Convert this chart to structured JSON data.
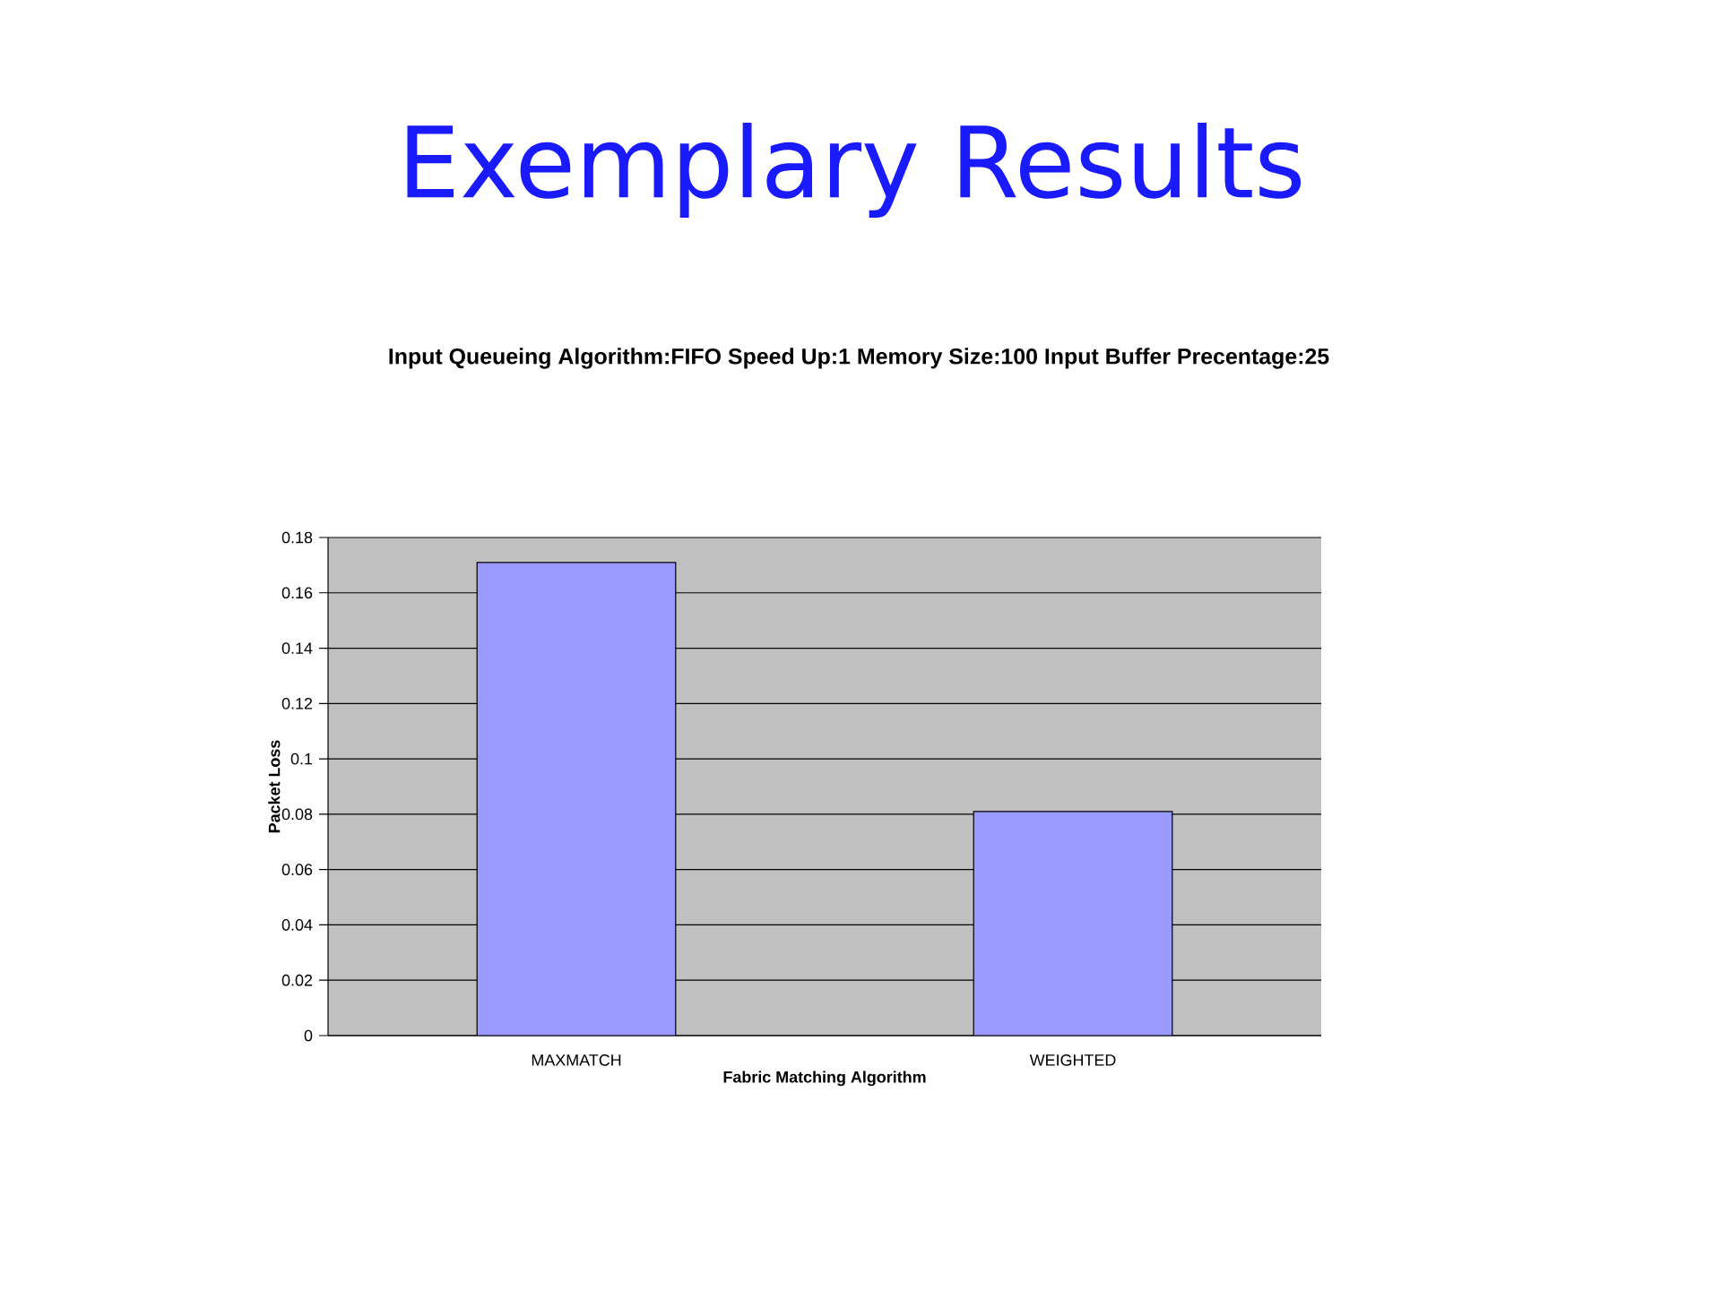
{
  "chart_data": {
    "type": "bar",
    "title": "Exemplary Results",
    "subtitle": "Input Queueing Algorithm:FIFO Speed Up:1 Memory Size:100 Input Buffer Precentage:25",
    "xlabel": "Fabric Matching Algorithm",
    "ylabel": "Packet Loss",
    "categories": [
      "MAXMATCH",
      "WEIGHTED"
    ],
    "values": [
      0.171,
      0.081
    ],
    "color": "#9999ff",
    "ylim": [
      0,
      0.18
    ],
    "yticks": [
      0,
      0.02,
      0.04,
      0.06,
      0.08,
      0.1,
      0.12,
      0.14,
      0.16,
      0.18
    ],
    "grid": "y"
  }
}
